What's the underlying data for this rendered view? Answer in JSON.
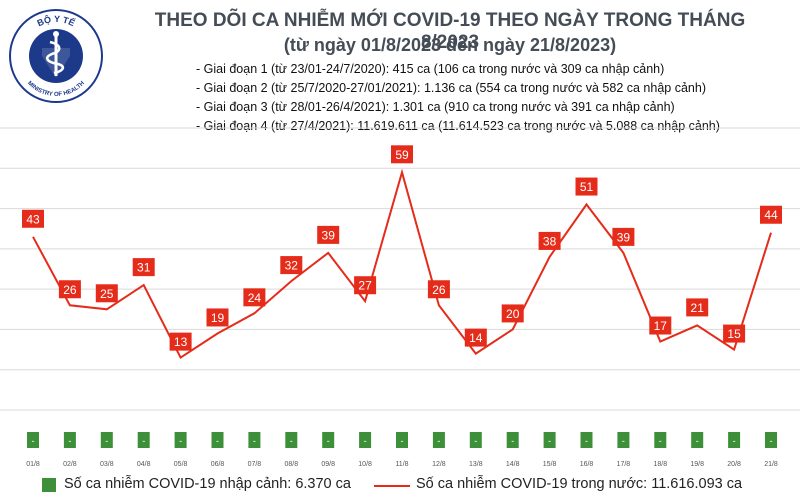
{
  "logo": {
    "top_text": "BỘ Y TẾ",
    "bottom_text": "MINISTRY OF HEALTH"
  },
  "header": {
    "title": "THEO DÕI CA NHIỄM MỚI COVID-19 THEO NGÀY TRONG THÁNG 8/2023",
    "subtitle": "(từ ngày 01/8/2023 đến ngày 21/8/2023)"
  },
  "phases": [
    "- Giai đoạn 1 (từ 23/01-24/7/2020): 415 ca (106 ca trong nước và 309 ca nhập cảnh)",
    "- Giai đoạn 2 (từ 25/7/2020-27/01/2021): 1.136 ca (554 ca trong nước và 582 ca nhập cảnh)",
    "- Giai đoạn 3 (từ 28/01-26/4/2021): 1.301 ca (910 ca trong nước và 391 ca nhập cảnh)",
    "- Giai đoạn 4 (từ 27/4/2021): 11.619.611 ca (11.614.523 ca trong nước và 5.088 ca nhập cảnh)"
  ],
  "legend": {
    "imported": "Số ca nhiễm COVID-19 nhập cảnh: 6.370 ca",
    "domestic": "Số ca nhiễm COVID-19 trong nước: 11.616.093 ca"
  },
  "colors": {
    "line": "#e52b1a",
    "bar": "#3e8f3a",
    "grid": "#d9d9d9",
    "title": "#444c55",
    "logo": "#1d3a8a"
  },
  "chart_data": {
    "type": "line",
    "title": "THEO DÕI CA NHIỄM MỚI COVID-19 THEO NGÀY TRONG THÁNG 8/2023",
    "categories": [
      "01/8",
      "02/8",
      "03/8",
      "04/8",
      "05/8",
      "06/8",
      "07/8",
      "08/8",
      "09/8",
      "10/8",
      "11/8",
      "12/8",
      "13/8",
      "14/8",
      "15/8",
      "16/8",
      "17/8",
      "18/8",
      "19/8",
      "20/8",
      "21/8"
    ],
    "series": [
      {
        "name": "Số ca nhiễm COVID-19 trong nước",
        "type": "line",
        "values": [
          43,
          26,
          25,
          31,
          13,
          19,
          24,
          32,
          39,
          27,
          59,
          26,
          14,
          20,
          38,
          51,
          39,
          17,
          21,
          15,
          44
        ]
      },
      {
        "name": "Số ca nhiễm COVID-19 nhập cảnh",
        "type": "bar",
        "values": [
          0,
          0,
          0,
          0,
          0,
          0,
          0,
          0,
          0,
          0,
          0,
          0,
          0,
          0,
          0,
          0,
          0,
          0,
          0,
          0,
          0
        ],
        "labels": [
          "-",
          "-",
          "-",
          "-",
          "-",
          "-",
          "-",
          "-",
          "-",
          "-",
          "-",
          "-",
          "-",
          "-",
          "-",
          "-",
          "-",
          "-",
          "-",
          "-",
          "-"
        ]
      }
    ],
    "ylim": [
      0,
      70
    ],
    "grid": true,
    "xlabel": "",
    "ylabel": ""
  }
}
